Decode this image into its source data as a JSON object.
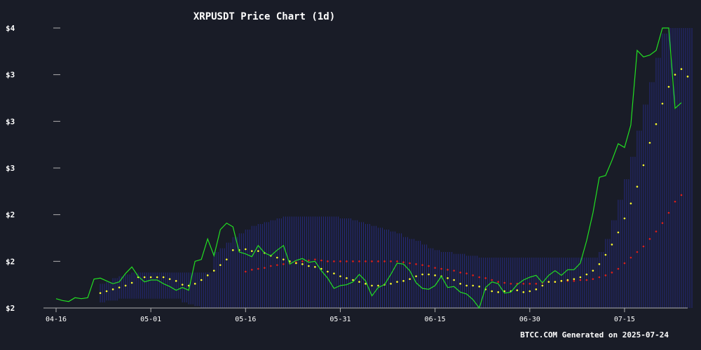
{
  "chart_data": {
    "type": "line",
    "title": "XRPUSDT Price Chart (1d)",
    "footer": "BTCC.COM Generated on 2025-07-24",
    "x_tick_labels": [
      "04-16",
      "05-01",
      "05-16",
      "05-31",
      "06-15",
      "06-30",
      "07-15"
    ],
    "x_tick_days": [
      0,
      15,
      30,
      45,
      60,
      75,
      90
    ],
    "y_tick_labels": [
      "$2",
      "$2",
      "$2",
      "$3",
      "$3",
      "$3",
      "$4"
    ],
    "y_tick_values": [
      2.0,
      2.25,
      2.5,
      2.75,
      3.0,
      3.25,
      3.5
    ],
    "xlim_days": [
      0,
      99
    ],
    "ylim": [
      2.0,
      3.5
    ],
    "colors": {
      "background": "#191c27",
      "price": "#22e022",
      "sma20": "#ffff33",
      "sma50": "#e02020",
      "band": "#2a2f9a",
      "text": "#ffffff",
      "axis": "#b0b0b0"
    },
    "series": [
      {
        "key": "price",
        "style": "line",
        "values": [
          2.05,
          2.04,
          2.035,
          2.055,
          2.05,
          2.055,
          2.155,
          2.16,
          2.145,
          2.13,
          2.14,
          2.185,
          2.22,
          2.17,
          2.14,
          2.15,
          2.15,
          2.13,
          2.115,
          2.095,
          2.11,
          2.095,
          2.25,
          2.26,
          2.37,
          2.28,
          2.42,
          2.455,
          2.435,
          2.3,
          2.29,
          2.275,
          2.335,
          2.295,
          2.28,
          2.31,
          2.335,
          2.235,
          2.255,
          2.265,
          2.245,
          2.25,
          2.2,
          2.16,
          2.105,
          2.12,
          2.125,
          2.14,
          2.18,
          2.145,
          2.065,
          2.11,
          2.125,
          2.18,
          2.24,
          2.235,
          2.2,
          2.135,
          2.105,
          2.1,
          2.12,
          2.17,
          2.11,
          2.115,
          2.085,
          2.075,
          2.045,
          2.0,
          2.11,
          2.14,
          2.13,
          2.08,
          2.085,
          2.125,
          2.15,
          2.165,
          2.175,
          2.135,
          2.175,
          2.2,
          2.175,
          2.205,
          2.205,
          2.24,
          2.36,
          2.51,
          2.7,
          2.71,
          2.79,
          2.88,
          2.86,
          2.98,
          3.38,
          3.345,
          3.355,
          3.38,
          3.5,
          3.5,
          3.07,
          3.1
        ]
      },
      {
        "key": "sma20",
        "style": "dots",
        "start_index": 7,
        "values": [
          2.08,
          2.09,
          2.1,
          2.11,
          2.12,
          2.135,
          2.165,
          2.165,
          2.165,
          2.165,
          2.165,
          2.155,
          2.145,
          2.125,
          2.12,
          2.13,
          2.15,
          2.175,
          2.2,
          2.23,
          2.26,
          2.31,
          2.31,
          2.315,
          2.305,
          2.305,
          2.295,
          2.28,
          2.27,
          2.26,
          2.25,
          2.24,
          2.235,
          2.225,
          2.22,
          2.21,
          2.195,
          2.185,
          2.17,
          2.16,
          2.15,
          2.14,
          2.13,
          2.12,
          2.12,
          2.125,
          2.13,
          2.14,
          2.145,
          2.155,
          2.17,
          2.18,
          2.18,
          2.175,
          2.17,
          2.16,
          2.15,
          2.13,
          2.12,
          2.12,
          2.115,
          2.1,
          2.09,
          2.085,
          2.09,
          2.09,
          2.095,
          2.085,
          2.09,
          2.1,
          2.12,
          2.14,
          2.14,
          2.145,
          2.15,
          2.155,
          2.165,
          2.18,
          2.2,
          2.235,
          2.285,
          2.34,
          2.405,
          2.48,
          2.56,
          2.65,
          2.765,
          2.885,
          2.985,
          3.095,
          3.185,
          3.25,
          3.28,
          3.24
        ]
      },
      {
        "key": "sma50",
        "style": "dots",
        "start_index": 30,
        "values": [
          2.195,
          2.205,
          2.21,
          2.215,
          2.225,
          2.23,
          2.235,
          2.24,
          2.245,
          2.25,
          2.255,
          2.26,
          2.255,
          2.25,
          2.25,
          2.25,
          2.25,
          2.25,
          2.25,
          2.25,
          2.25,
          2.25,
          2.25,
          2.25,
          2.25,
          2.245,
          2.24,
          2.235,
          2.23,
          2.225,
          2.215,
          2.21,
          2.205,
          2.2,
          2.19,
          2.185,
          2.175,
          2.165,
          2.16,
          2.15,
          2.14,
          2.135,
          2.13,
          2.13,
          2.13,
          2.13,
          2.13,
          2.135,
          2.14,
          2.14,
          2.145,
          2.145,
          2.145,
          2.15,
          2.15,
          2.155,
          2.165,
          2.175,
          2.19,
          2.21,
          2.24,
          2.27,
          2.3,
          2.33,
          2.37,
          2.41,
          2.455,
          2.51,
          2.57,
          2.605
        ]
      },
      {
        "key": "upper_band",
        "style": "band",
        "start_index": 7,
        "values": [
          2.13,
          2.14,
          2.16,
          2.17,
          2.18,
          2.19,
          2.19,
          2.19,
          2.19,
          2.19,
          2.19,
          2.19,
          2.19,
          2.19,
          2.19,
          2.19,
          2.19,
          2.19,
          2.3,
          2.32,
          2.35,
          2.38,
          2.4,
          2.42,
          2.44,
          2.45,
          2.46,
          2.47,
          2.48,
          2.49,
          2.49,
          2.49,
          2.49,
          2.49,
          2.49,
          2.49,
          2.49,
          2.49,
          2.48,
          2.48,
          2.47,
          2.46,
          2.45,
          2.44,
          2.43,
          2.42,
          2.41,
          2.4,
          2.38,
          2.37,
          2.36,
          2.34,
          2.32,
          2.31,
          2.3,
          2.3,
          2.29,
          2.29,
          2.28,
          2.28,
          2.27,
          2.27,
          2.27,
          2.27,
          2.27,
          2.27,
          2.27,
          2.27,
          2.27,
          2.27,
          2.27,
          2.27,
          2.27,
          2.27,
          2.27,
          2.27,
          2.27,
          2.27,
          2.27,
          2.3,
          2.37,
          2.47,
          2.58,
          2.69,
          2.81,
          2.95,
          3.09,
          3.21,
          3.34,
          3.47,
          3.5,
          3.5,
          3.5,
          3.5
        ]
      },
      {
        "key": "lower_band",
        "style": "band",
        "start_index": 7,
        "values": [
          2.03,
          2.04,
          2.04,
          2.05,
          2.05,
          2.05,
          2.05,
          2.05,
          2.05,
          2.05,
          2.05,
          2.05,
          2.05,
          2.03,
          2.02,
          2.01,
          2.0,
          2.0,
          2.0,
          2.0,
          2.0,
          2.0,
          2.0,
          2.0,
          2.0,
          2.0,
          2.0,
          2.0,
          2.0,
          2.0,
          2.0,
          2.0,
          2.0,
          2.0,
          2.0,
          2.0,
          2.0,
          2.0,
          2.0,
          2.0,
          2.0,
          2.0,
          2.0,
          2.0,
          2.0,
          2.0,
          2.0,
          2.0,
          2.0,
          2.0,
          2.0,
          2.0,
          2.0,
          2.0,
          2.0,
          2.0,
          2.0,
          2.0,
          2.0,
          2.0,
          2.0,
          2.0,
          2.0,
          2.0,
          2.0,
          2.0,
          2.0,
          2.0,
          2.0,
          2.0,
          2.0,
          2.0,
          2.0,
          2.0,
          2.0,
          2.0,
          2.0,
          2.0,
          2.0,
          2.0,
          2.0,
          2.0,
          2.0,
          2.0,
          2.0,
          2.0,
          2.0,
          2.0,
          2.0,
          2.0,
          2.0,
          2.0,
          2.0,
          2.0
        ]
      }
    ]
  }
}
